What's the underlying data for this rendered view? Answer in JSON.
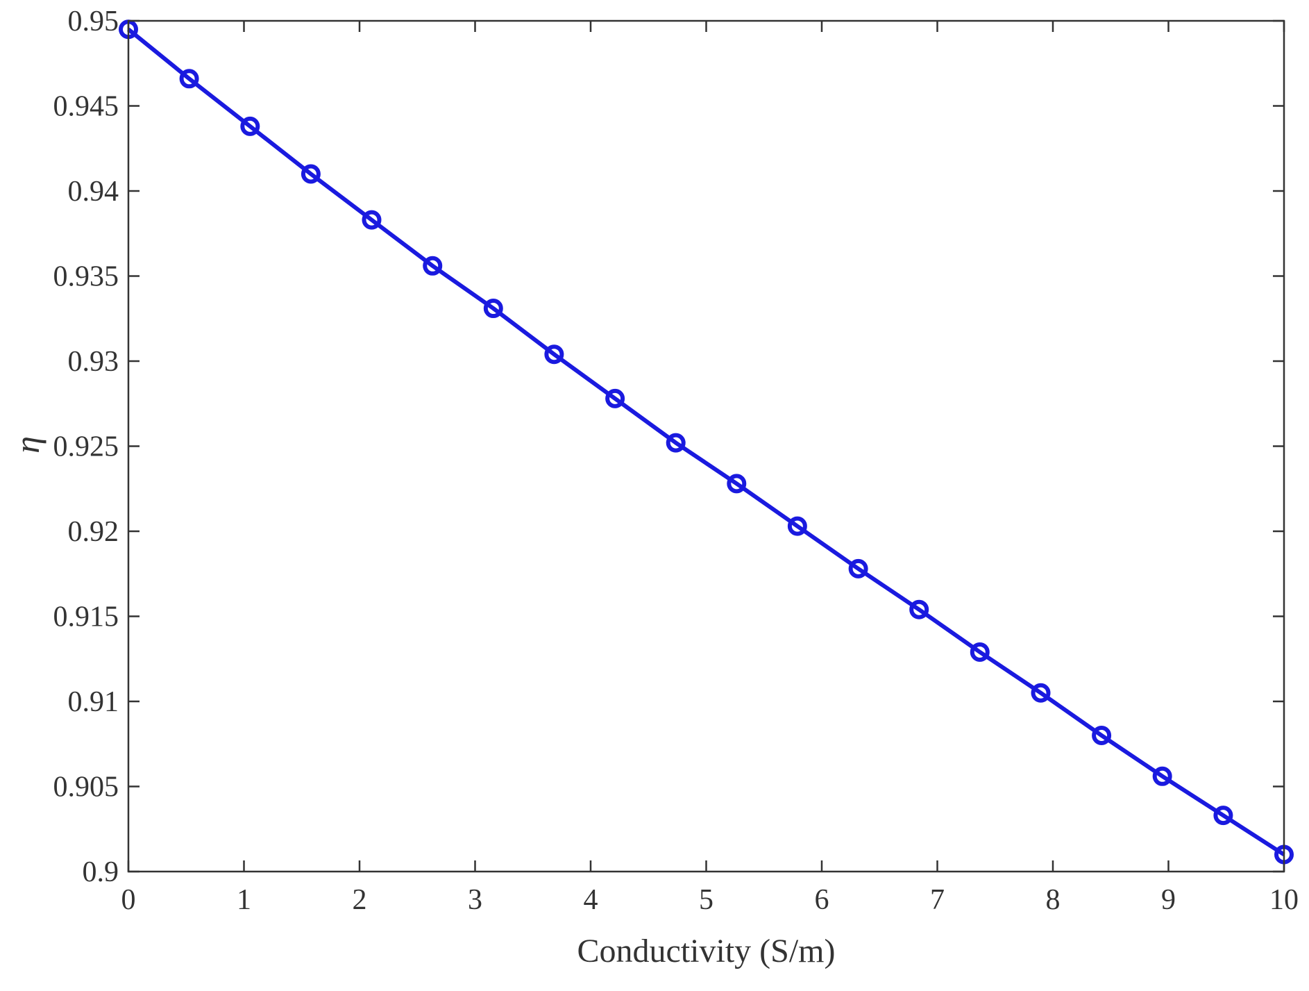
{
  "chart_data": {
    "type": "line",
    "title": "",
    "xlabel": "Conductivity (S/m)",
    "ylabel": "η",
    "xlim": [
      0,
      10
    ],
    "ylim": [
      0.9,
      0.95
    ],
    "grid": false,
    "x_ticks": [
      "0",
      "1",
      "2",
      "3",
      "4",
      "5",
      "6",
      "7",
      "8",
      "9",
      "10"
    ],
    "y_ticks": [
      "0.9",
      "0.905",
      "0.91",
      "0.915",
      "0.92",
      "0.925",
      "0.93",
      "0.935",
      "0.94",
      "0.945",
      "0.95"
    ],
    "series": [
      {
        "color": "#1a1adf",
        "marker": "circle",
        "x": [
          0,
          0.526,
          1.053,
          1.579,
          2.105,
          2.632,
          3.158,
          3.684,
          4.211,
          4.737,
          5.263,
          5.789,
          6.316,
          6.842,
          7.368,
          7.895,
          8.421,
          8.947,
          9.474,
          10
        ],
        "y": [
          0.9495,
          0.9466,
          0.9438,
          0.941,
          0.9383,
          0.9356,
          0.9331,
          0.9304,
          0.9278,
          0.9252,
          0.9228,
          0.9203,
          0.9178,
          0.9154,
          0.9129,
          0.9105,
          0.908,
          0.9056,
          0.9033,
          0.901
        ]
      }
    ]
  }
}
